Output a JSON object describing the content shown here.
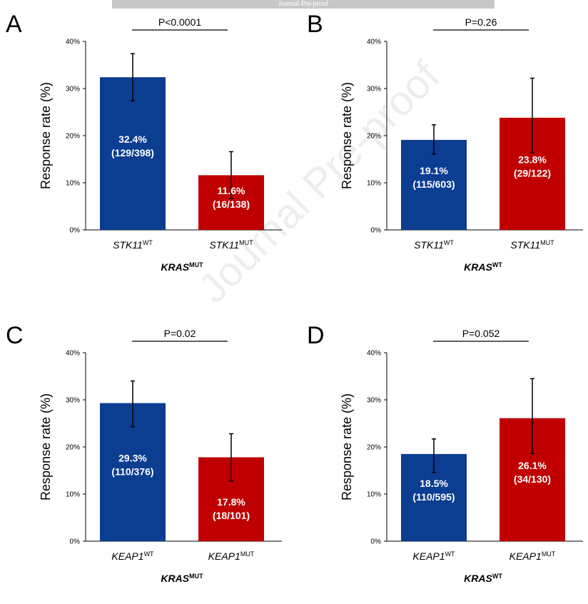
{
  "header_banner": "Journal Pre-proof",
  "watermark": "Journal Pre-proof",
  "colors": {
    "wt": "#0b3d91",
    "mut": "#c00000"
  },
  "chart_data": [
    {
      "panel": "A",
      "type": "bar",
      "categories": [
        {
          "gene": "STK11",
          "sup": "WT"
        },
        {
          "gene": "STK11",
          "sup": "MUT"
        }
      ],
      "values": [
        32.4,
        11.6
      ],
      "error_low": [
        27.4,
        6.7
      ],
      "error_high": [
        37.4,
        16.6
      ],
      "bar_labels": [
        [
          "32.4%",
          "(129/398)"
        ],
        [
          "11.6%",
          "(16/138)"
        ]
      ],
      "pvalue": "P<0.0001",
      "ylabel": "Response rate (%)",
      "group_label": {
        "gene": "KRAS",
        "sup": "MUT"
      },
      "ylim": [
        0,
        40
      ],
      "yticks": [
        "0%",
        "10%",
        "20%",
        "30%",
        "40%"
      ],
      "grid": false
    },
    {
      "panel": "B",
      "type": "bar",
      "categories": [
        {
          "gene": "STK11",
          "sup": "WT"
        },
        {
          "gene": "STK11",
          "sup": "MUT"
        }
      ],
      "values": [
        19.1,
        23.8
      ],
      "error_low": [
        16.1,
        16.4
      ],
      "error_high": [
        22.3,
        32.2
      ],
      "bar_labels": [
        [
          "19.1%",
          "(115/603)"
        ],
        [
          "23.8%",
          "(29/122)"
        ]
      ],
      "pvalue": "P=0.26",
      "ylabel": "Response rate (%)",
      "group_label": {
        "gene": "KRAS",
        "sup": "WT"
      },
      "ylim": [
        0,
        40
      ],
      "yticks": [
        "0%",
        "10%",
        "20%",
        "30%",
        "40%"
      ],
      "grid": false
    },
    {
      "panel": "C",
      "type": "bar",
      "categories": [
        {
          "gene": "KEAP1",
          "sup": "WT"
        },
        {
          "gene": "KEAP1",
          "sup": "MUT"
        }
      ],
      "values": [
        29.3,
        17.8
      ],
      "error_low": [
        24.3,
        12.7
      ],
      "error_high": [
        34.0,
        22.8
      ],
      "bar_labels": [
        [
          "29.3%",
          "(110/376)"
        ],
        [
          "17.8%",
          "(18/101)"
        ]
      ],
      "pvalue": "P=0.02",
      "ylabel": "Response rate (%)",
      "group_label": {
        "gene": "KRAS",
        "sup": "MUT"
      },
      "ylim": [
        0,
        40
      ],
      "yticks": [
        "0%",
        "10%",
        "20%",
        "30%",
        "40%"
      ],
      "grid": false
    },
    {
      "panel": "D",
      "type": "bar",
      "categories": [
        {
          "gene": "KEAP1",
          "sup": "WT"
        },
        {
          "gene": "KEAP1",
          "sup": "MUT"
        }
      ],
      "values": [
        18.5,
        26.1
      ],
      "error_low": [
        14.6,
        18.6
      ],
      "error_high": [
        21.7,
        34.5
      ],
      "bar_labels": [
        [
          "18.5%",
          "(110/595)"
        ],
        [
          "26.1%",
          "(34/130)"
        ]
      ],
      "pvalue": "P=0.052",
      "ylabel": "Response rate (%)",
      "group_label": {
        "gene": "KRAS",
        "sup": "WT"
      },
      "ylim": [
        0,
        40
      ],
      "yticks": [
        "0%",
        "10%",
        "20%",
        "30%",
        "40%"
      ],
      "grid": false
    }
  ]
}
